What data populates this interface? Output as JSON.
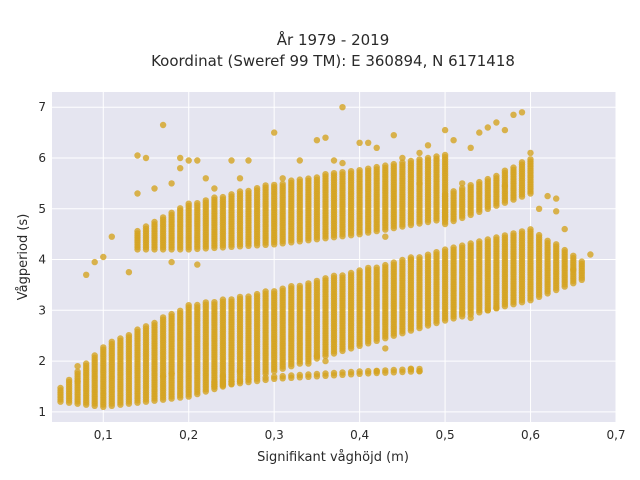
{
  "chart_data": {
    "type": "scatter",
    "title_line1": "År 1979 - 2019",
    "title_line2": "Koordinat (Sweref 99 TM): E 360894, N 6171418",
    "xlabel": "Signifikant våghöjd (m)",
    "ylabel": "Vågperiod (s)",
    "xlim": [
      0.04,
      0.7
    ],
    "ylim": [
      0.8,
      7.3
    ],
    "x_ticks": [
      "0,1",
      "0,2",
      "0,3",
      "0,4",
      "0,5",
      "0,6",
      "0,7"
    ],
    "x_tick_values": [
      0.1,
      0.2,
      0.3,
      0.4,
      0.5,
      0.6,
      0.7
    ],
    "y_ticks": [
      "1",
      "2",
      "3",
      "4",
      "5",
      "6",
      "7"
    ],
    "y_tick_values": [
      1,
      2,
      3,
      4,
      5,
      6,
      7
    ],
    "grid": true,
    "colors": {
      "plot_bg": "#e5e5f0",
      "grid": "#ffffff",
      "marker": "#d4a422"
    },
    "bands": [
      {
        "name": "",
        "x_range": [
          0.05,
          0.66
        ],
        "x_step": 0.01,
        "lower": [
          [
            0.05,
            1.2
          ],
          [
            0.1,
            1.1
          ],
          [
            0.2,
            1.3
          ],
          [
            0.3,
            1.8
          ],
          [
            0.4,
            2.3
          ],
          [
            0.5,
            2.8
          ],
          [
            0.6,
            3.2
          ],
          [
            0.66,
            3.6
          ]
        ],
        "upper": [
          [
            0.05,
            1.5
          ],
          [
            0.1,
            2.3
          ],
          [
            0.2,
            3.1
          ],
          [
            0.3,
            3.4
          ],
          [
            0.4,
            3.8
          ],
          [
            0.5,
            4.2
          ],
          [
            0.6,
            4.6
          ],
          [
            0.66,
            4.0
          ]
        ]
      },
      {
        "name": "",
        "x_range": [
          0.14,
          0.5
        ],
        "x_step": 0.01,
        "lower": [
          [
            0.14,
            4.2
          ],
          [
            0.2,
            4.2
          ],
          [
            0.3,
            4.3
          ],
          [
            0.4,
            4.5
          ],
          [
            0.5,
            4.8
          ]
        ],
        "upper": [
          [
            0.14,
            4.6
          ],
          [
            0.2,
            5.1
          ],
          [
            0.3,
            5.5
          ],
          [
            0.4,
            5.8
          ],
          [
            0.5,
            6.1
          ]
        ]
      },
      {
        "name": "",
        "x_range": [
          0.23,
          0.47
        ],
        "x_step": 0.01,
        "lower": [
          [
            0.23,
            1.5
          ],
          [
            0.3,
            1.65
          ],
          [
            0.4,
            1.75
          ],
          [
            0.47,
            1.8
          ]
        ],
        "upper": [
          [
            0.23,
            1.6
          ],
          [
            0.3,
            1.7
          ],
          [
            0.4,
            1.8
          ],
          [
            0.47,
            1.85
          ]
        ]
      },
      {
        "name": "",
        "x_range": [
          0.5,
          0.6
        ],
        "x_step": 0.01,
        "lower": [
          [
            0.5,
            4.7
          ],
          [
            0.55,
            5.0
          ],
          [
            0.6,
            5.3
          ]
        ],
        "upper": [
          [
            0.5,
            5.3
          ],
          [
            0.55,
            5.6
          ],
          [
            0.6,
            6.0
          ]
        ]
      }
    ],
    "scattered_points": [
      [
        0.08,
        3.7
      ],
      [
        0.09,
        3.95
      ],
      [
        0.1,
        4.05
      ],
      [
        0.11,
        4.45
      ],
      [
        0.13,
        3.75
      ],
      [
        0.14,
        5.3
      ],
      [
        0.14,
        6.05
      ],
      [
        0.15,
        6.0
      ],
      [
        0.16,
        5.4
      ],
      [
        0.17,
        6.65
      ],
      [
        0.18,
        3.95
      ],
      [
        0.18,
        5.5
      ],
      [
        0.19,
        6.0
      ],
      [
        0.19,
        5.8
      ],
      [
        0.2,
        5.95
      ],
      [
        0.21,
        5.95
      ],
      [
        0.21,
        3.9
      ],
      [
        0.22,
        5.6
      ],
      [
        0.23,
        5.4
      ],
      [
        0.25,
        5.95
      ],
      [
        0.26,
        5.6
      ],
      [
        0.27,
        5.95
      ],
      [
        0.3,
        6.5
      ],
      [
        0.31,
        5.6
      ],
      [
        0.33,
        5.95
      ],
      [
        0.35,
        6.35
      ],
      [
        0.36,
        6.4
      ],
      [
        0.37,
        5.95
      ],
      [
        0.38,
        7.0
      ],
      [
        0.38,
        5.9
      ],
      [
        0.4,
        6.3
      ],
      [
        0.41,
        6.3
      ],
      [
        0.42,
        6.2
      ],
      [
        0.44,
        6.45
      ],
      [
        0.45,
        6.0
      ],
      [
        0.47,
        6.1
      ],
      [
        0.48,
        6.25
      ],
      [
        0.5,
        6.55
      ],
      [
        0.51,
        6.35
      ],
      [
        0.52,
        5.5
      ],
      [
        0.53,
        6.2
      ],
      [
        0.54,
        6.5
      ],
      [
        0.55,
        6.6
      ],
      [
        0.56,
        6.7
      ],
      [
        0.57,
        6.55
      ],
      [
        0.58,
        6.85
      ],
      [
        0.59,
        6.9
      ],
      [
        0.6,
        6.1
      ],
      [
        0.57,
        5.45
      ],
      [
        0.46,
        1.85
      ],
      [
        0.47,
        1.8
      ],
      [
        0.42,
        1.8
      ],
      [
        0.43,
        2.25
      ],
      [
        0.46,
        4.0
      ],
      [
        0.43,
        4.45
      ],
      [
        0.47,
        5.5
      ],
      [
        0.52,
        2.95
      ],
      [
        0.53,
        2.85
      ],
      [
        0.55,
        3.0
      ],
      [
        0.56,
        3.05
      ],
      [
        0.35,
        2.1
      ],
      [
        0.36,
        2.0
      ],
      [
        0.34,
        1.95
      ],
      [
        0.24,
        1.7
      ],
      [
        0.26,
        1.8
      ],
      [
        0.17,
        1.7
      ],
      [
        0.18,
        1.75
      ],
      [
        0.65,
        3.8
      ],
      [
        0.67,
        4.1
      ],
      [
        0.64,
        4.6
      ],
      [
        0.63,
        4.95
      ],
      [
        0.62,
        5.25
      ],
      [
        0.61,
        5.0
      ],
      [
        0.63,
        5.2
      ],
      [
        0.07,
        1.9
      ],
      [
        0.07,
        1.6
      ]
    ]
  }
}
